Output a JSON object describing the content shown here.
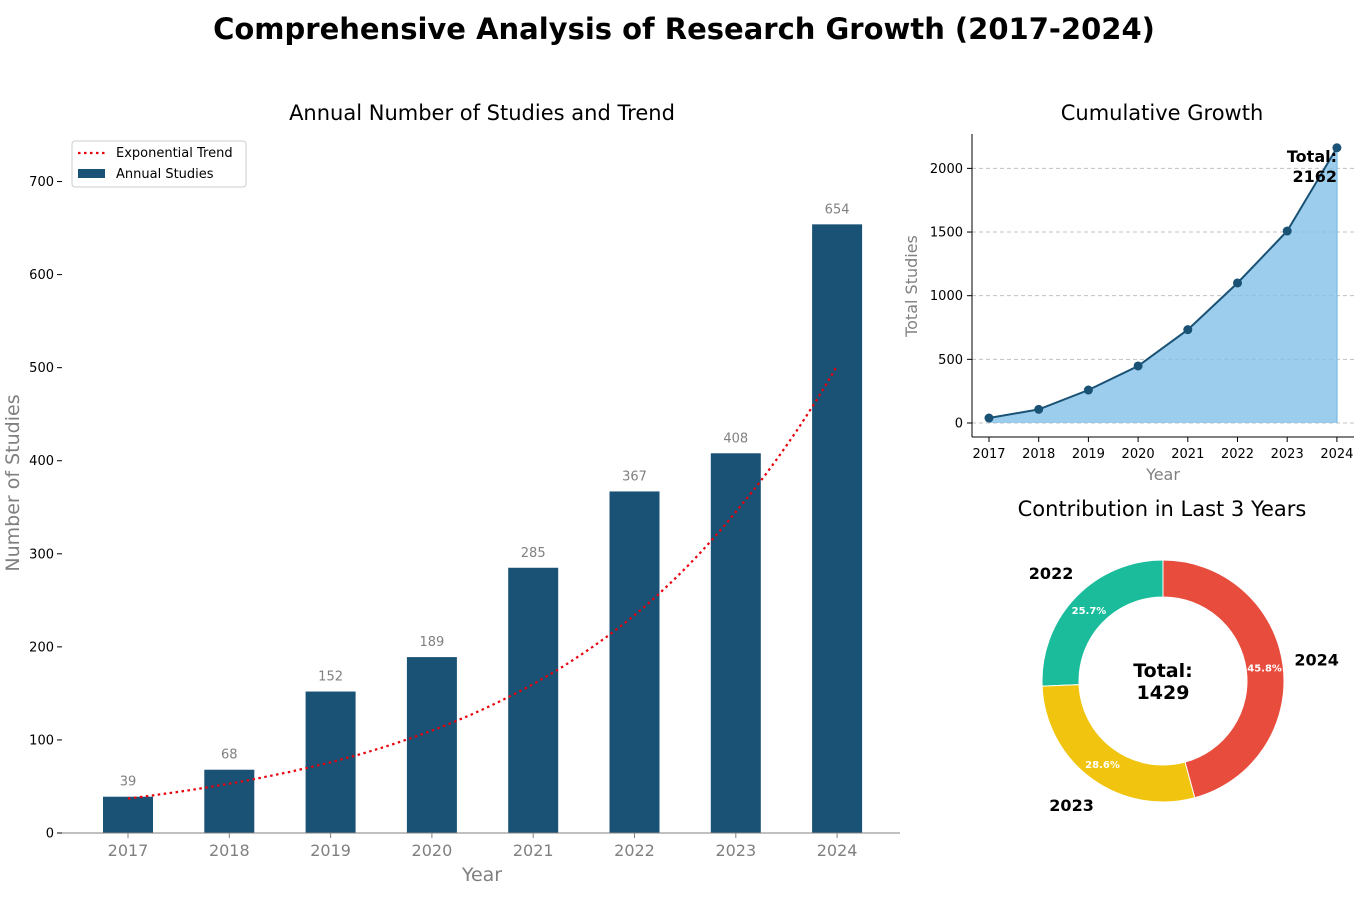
{
  "title": "Comprehensive Analysis of Research Growth (2017-2024)",
  "colors": {
    "bar": "#1a5276",
    "trend": "#e8000b",
    "area": "#85c1e9",
    "line": "#1a5276",
    "donut_2022": "#1abc9c",
    "donut_2023": "#f1c40f",
    "donut_2024": "#e74c3c"
  },
  "chart_data": [
    {
      "type": "bar",
      "title": "Annual Number of Studies and Trend",
      "xlabel": "Year",
      "ylabel": "Number of Studies",
      "categories": [
        "2017",
        "2018",
        "2019",
        "2020",
        "2021",
        "2022",
        "2023",
        "2024"
      ],
      "values": [
        39,
        68,
        152,
        189,
        285,
        367,
        408,
        654
      ],
      "value_labels": [
        "39",
        "68",
        "152",
        "189",
        "285",
        "367",
        "408",
        "654"
      ],
      "trend": {
        "name": "Exponential Trend",
        "values": [
          37,
          53,
          76,
          110,
          160,
          234,
          345,
          502
        ]
      },
      "ylim": [
        0,
        750
      ],
      "yticks": [
        0,
        100,
        200,
        300,
        400,
        500,
        600,
        700
      ],
      "ytick_labels": [
        "0",
        "100",
        "200",
        "300",
        "400",
        "500",
        "600",
        "700"
      ],
      "legend": {
        "position": "top-left",
        "entries": [
          "Exponential Trend",
          "Annual Studies"
        ]
      }
    },
    {
      "type": "area",
      "title": "Cumulative Growth",
      "xlabel": "Year",
      "ylabel": "Total Studies",
      "categories": [
        "2017",
        "2018",
        "2019",
        "2020",
        "2021",
        "2022",
        "2023",
        "2024"
      ],
      "values": [
        39,
        107,
        259,
        448,
        733,
        1100,
        1508,
        2162
      ],
      "ylim": [
        -110,
        2270
      ],
      "yticks": [
        0,
        500,
        1000,
        1500,
        2000
      ],
      "ytick_labels": [
        "0",
        "500",
        "1000",
        "1500",
        "2000"
      ],
      "grid": true,
      "annotation": {
        "line1": "Total:",
        "line2": "2162"
      }
    },
    {
      "type": "pie",
      "title": "Contribution in Last 3 Years",
      "labels": [
        "2022",
        "2023",
        "2024"
      ],
      "values": [
        367,
        408,
        654
      ],
      "percent_labels": [
        "25.7%",
        "28.6%",
        "45.8%"
      ],
      "center": {
        "line1": "Total:",
        "line2": "1429"
      }
    }
  ]
}
